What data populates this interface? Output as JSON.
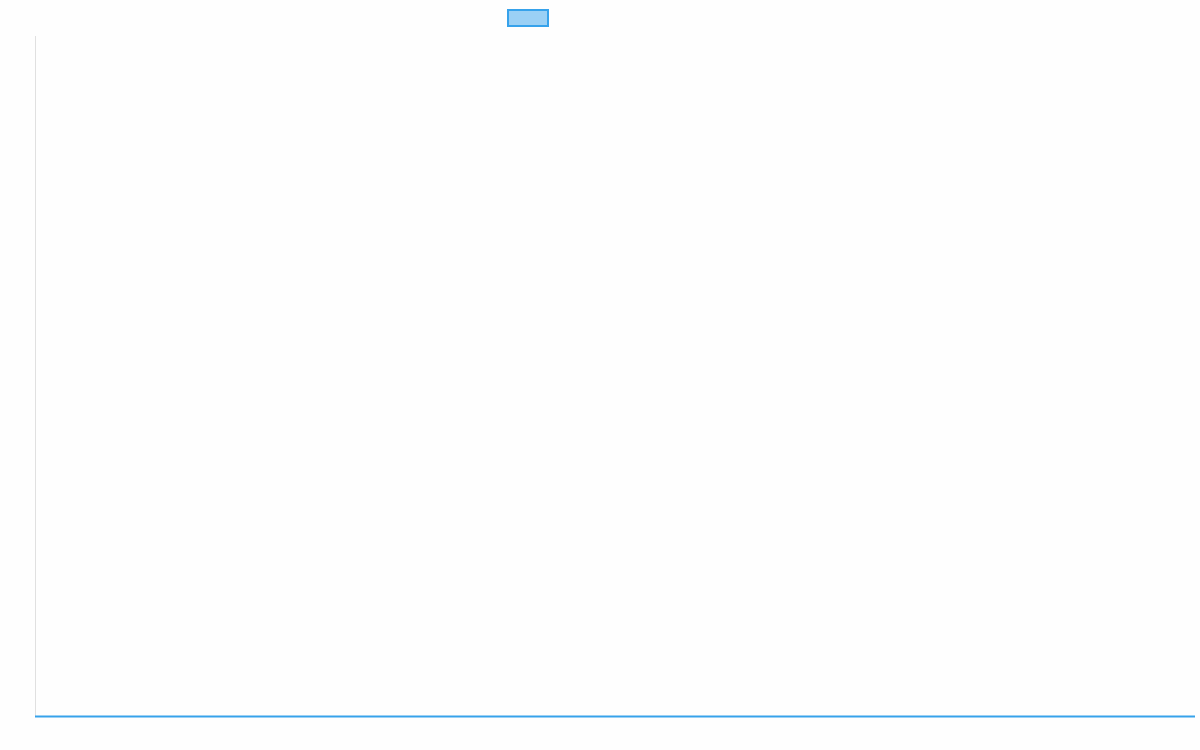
{
  "chart_data": {
    "type": "line",
    "title": "",
    "xlabel": "",
    "ylabel": "",
    "categories": [],
    "series": [
      {
        "color": "#36a2eb",
        "fill": "rgba(54,162,235,0.5)",
        "values": []
      }
    ],
    "grid": false,
    "legend": "top"
  }
}
